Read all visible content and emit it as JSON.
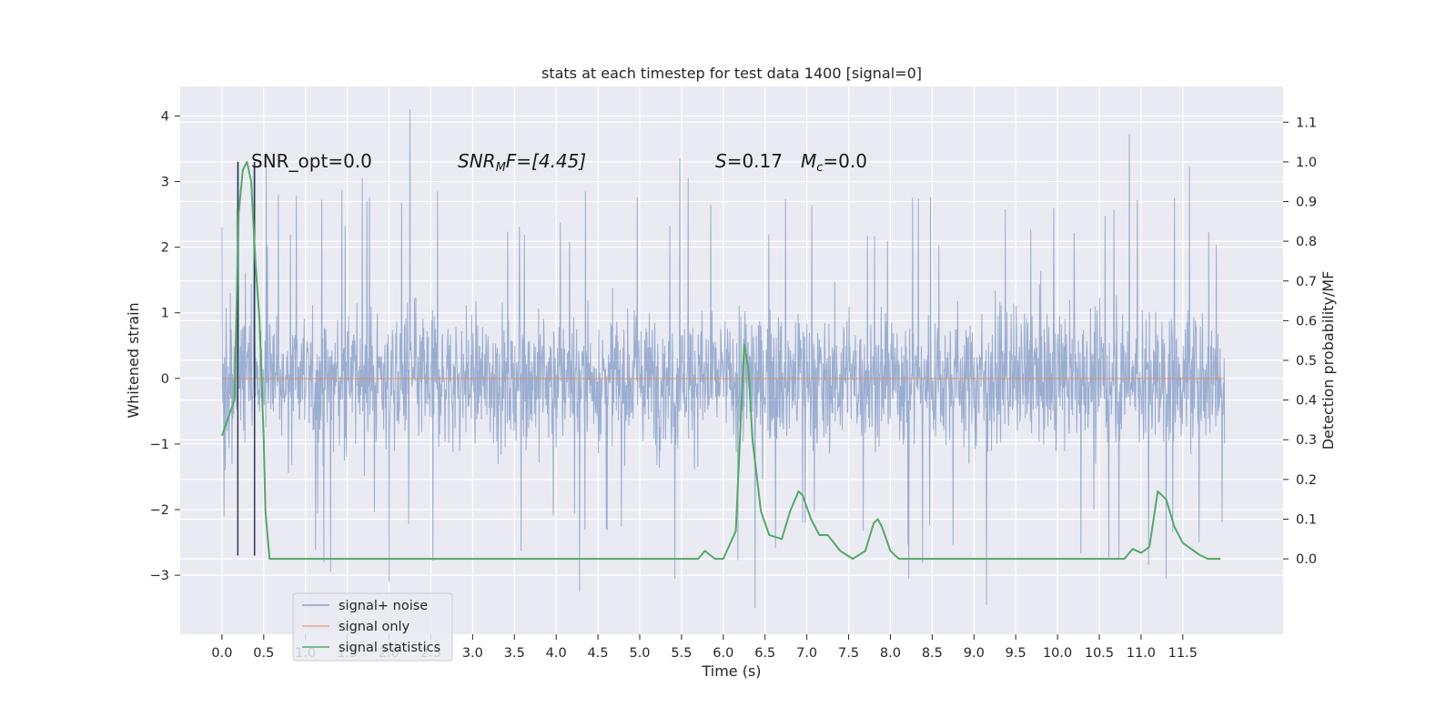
{
  "chart_data": {
    "type": "line",
    "title": "stats at each timestep for test data 1400 [signal=0]",
    "xlabel": "Time (s)",
    "ylabel": "Whitened strain",
    "y2label": "Detection probability/MF",
    "xlim": [
      -0.5,
      12.7
    ],
    "ylim": [
      -3.9,
      4.45
    ],
    "y2lim": [
      -0.19,
      1.19
    ],
    "x_ticks": [
      "0.0",
      "0.5",
      "1.0",
      "1.5",
      "2.0",
      "2.5",
      "3.0",
      "3.5",
      "4.0",
      "4.5",
      "5.0",
      "5.5",
      "6.0",
      "6.5",
      "7.0",
      "7.5",
      "8.0",
      "8.5",
      "9.0",
      "9.5",
      "10.0",
      "10.5",
      "11.0",
      "11.5"
    ],
    "y_ticks": [
      "4",
      "3",
      "2",
      "1",
      "0",
      "−1",
      "−2",
      "−3"
    ],
    "y2_ticks": [
      "1.1",
      "1.0",
      "0.9",
      "0.8",
      "0.7",
      "0.6",
      "0.5",
      "0.4",
      "0.3",
      "0.2",
      "0.1",
      "0.0"
    ],
    "annotations": {
      "snr_opt": "SNR_opt=0.0",
      "snr_mf_base": "SNR",
      "snr_mf_sub": "M",
      "snr_mf_rest": "F=[4.45]",
      "s_label": "S",
      "s_value": "=0.17",
      "mc_base": "M",
      "mc_sub": "c",
      "mc_value": "=0.0"
    },
    "grid": true,
    "legend_position": "lower-left",
    "series": [
      {
        "name": "signal+ noise",
        "axis": "left",
        "color": "#4c72b0",
        "style": "whitened noise, x 0.0–12.0 s, dense band roughly ±1.5 with spikes to about ±3.5 (max ~4.1 near 2.25 s)",
        "envelope_upper_peaks": [
          [
            0.2,
            3.3
          ],
          [
            0.38,
            3.3
          ],
          [
            0.53,
            3.25
          ],
          [
            1.68,
            3.05
          ],
          [
            2.25,
            4.1
          ],
          [
            2.58,
            2.85
          ],
          [
            4.35,
            2.85
          ],
          [
            5.48,
            3.35
          ],
          [
            5.58,
            3.05
          ],
          [
            10.86,
            3.72
          ],
          [
            11.58,
            3.22
          ],
          [
            11.4,
            2.75
          ]
        ],
        "envelope_lower_peaks": [
          [
            1.3,
            -2.95
          ],
          [
            2.0,
            -3.1
          ],
          [
            4.28,
            -3.25
          ],
          [
            5.42,
            -3.05
          ],
          [
            6.38,
            -3.5
          ],
          [
            8.22,
            -3.05
          ],
          [
            9.15,
            -3.45
          ],
          [
            11.3,
            -3.05
          ]
        ]
      },
      {
        "name": "signal only",
        "axis": "left",
        "color": "#dd8452",
        "x": [
          0.0,
          12.0
        ],
        "y": [
          0.0,
          0.0
        ]
      },
      {
        "name": "signal statistics",
        "axis": "right",
        "color": "#55a868",
        "x": [
          0.0,
          0.1,
          0.15,
          0.2,
          0.25,
          0.3,
          0.35,
          0.4,
          0.45,
          0.5,
          0.52,
          0.57,
          0.65,
          0.8,
          1.0,
          2.5,
          3.0,
          4.0,
          5.0,
          5.7,
          5.78,
          5.9,
          6.0,
          6.15,
          6.25,
          6.3,
          6.35,
          6.45,
          6.55,
          6.7,
          6.8,
          6.9,
          6.95,
          7.05,
          7.15,
          7.25,
          7.4,
          7.55,
          7.7,
          7.8,
          7.85,
          7.9,
          8.0,
          8.1,
          8.3,
          8.8,
          9.3,
          9.8,
          10.8,
          10.9,
          11.0,
          11.1,
          11.2,
          11.3,
          11.4,
          11.5,
          11.7,
          11.8,
          11.95
        ],
        "y": [
          0.31,
          0.37,
          0.4,
          0.87,
          0.98,
          1.0,
          0.95,
          0.75,
          0.6,
          0.3,
          0.12,
          0.0,
          0.0,
          0.0,
          0.0,
          0.0,
          0.0,
          0.0,
          0.0,
          0.0,
          0.02,
          0.0,
          0.0,
          0.07,
          0.54,
          0.48,
          0.3,
          0.12,
          0.06,
          0.05,
          0.12,
          0.17,
          0.16,
          0.1,
          0.06,
          0.06,
          0.02,
          0.0,
          0.02,
          0.09,
          0.1,
          0.08,
          0.02,
          0.0,
          0.0,
          0.0,
          0.0,
          0.0,
          0.0,
          0.025,
          0.015,
          0.03,
          0.17,
          0.15,
          0.08,
          0.04,
          0.01,
          0.0,
          0.0
        ]
      }
    ],
    "vertical_markers": {
      "color": "#2e3a4f",
      "x": [
        0.19,
        0.39
      ],
      "y_range": [
        -2.7,
        3.3
      ]
    }
  }
}
